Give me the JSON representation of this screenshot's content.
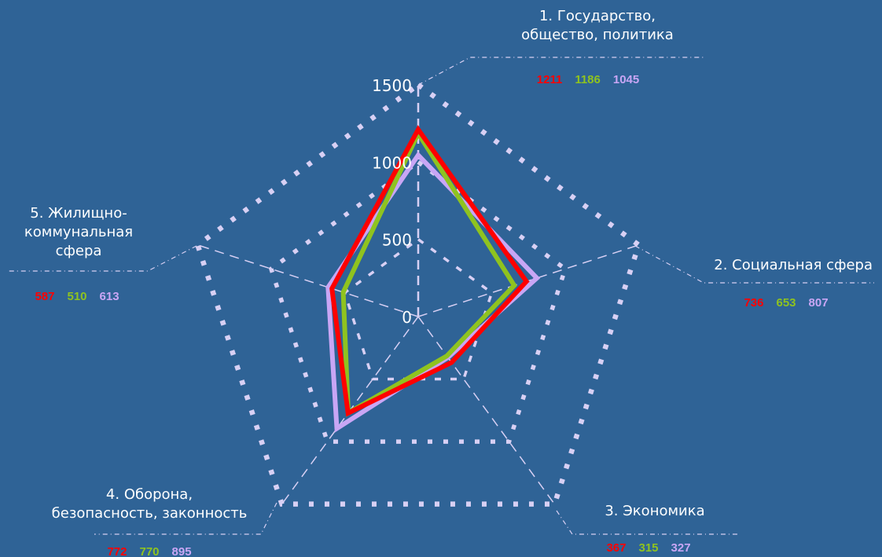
{
  "chart_data": {
    "type": "radar",
    "axes": [
      "1. Государство, общество, политика",
      "2. Социальная сфера",
      "3. Экономика",
      "4. Оборона, безопасность, законность",
      "5. Жилищно-коммунальная сфера"
    ],
    "axis_title_lines": [
      [
        "1. Государство,",
        "общество, политика"
      ],
      [
        "2. Социальная сфера"
      ],
      [
        "3. Экономика"
      ],
      [
        "4. Оборона,",
        "безопасность, законность"
      ],
      [
        "5. Жилищно-",
        "коммунальная",
        "сфера"
      ]
    ],
    "ticks": [
      0,
      500,
      1000,
      1500
    ],
    "rlim": [
      0,
      1500
    ],
    "series": [
      {
        "color": "#ff0000",
        "values": [
          1211,
          736,
          367,
          772,
          587
        ]
      },
      {
        "color": "#8fc31f",
        "values": [
          1186,
          653,
          315,
          770,
          510
        ]
      },
      {
        "color": "#c9a6f5",
        "values": [
          1045,
          807,
          327,
          895,
          613
        ]
      }
    ],
    "value_labels": [
      [
        "1211",
        "1186",
        "1045"
      ],
      [
        "736",
        "653",
        "807"
      ],
      [
        "367",
        "315",
        "327"
      ],
      [
        "772",
        "770",
        "895"
      ],
      [
        "587",
        "510",
        "613"
      ]
    ],
    "gridlines": true,
    "legend": "none"
  }
}
